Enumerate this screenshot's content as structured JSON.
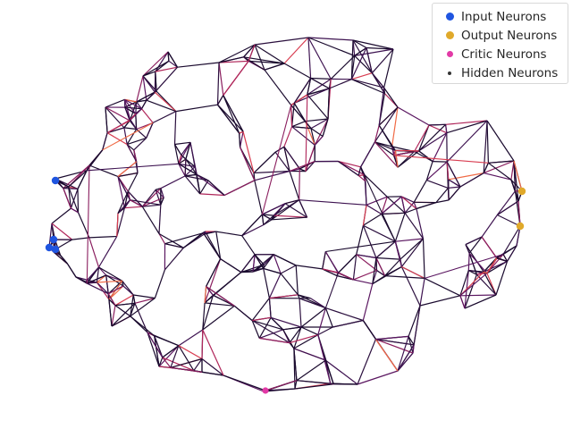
{
  "legend": {
    "items": [
      {
        "label": "Input Neurons",
        "color": "#1f55e0",
        "size": 9
      },
      {
        "label": "Output Neurons",
        "color": "#e0a92a",
        "size": 9
      },
      {
        "label": "Critic Neurons",
        "color": "#e23aa6",
        "size": 7
      },
      {
        "label": "Hidden Neurons",
        "color": "#333333",
        "size": 4
      }
    ]
  },
  "edge_colors": [
    "#1a0a2e",
    "#2b0f3e",
    "#3d1250",
    "#5a1660",
    "#8a1d5e",
    "#b0265a",
    "#d83c50",
    "#f06a45"
  ],
  "seed": 73
}
